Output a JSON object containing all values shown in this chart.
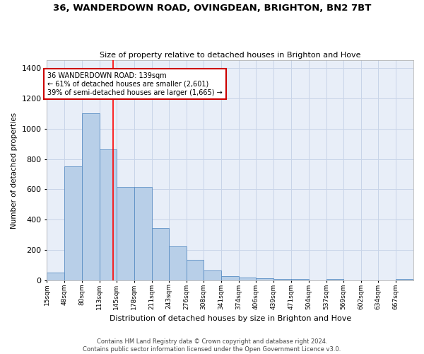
{
  "title": "36, WANDERDOWN ROAD, OVINGDEAN, BRIGHTON, BN2 7BT",
  "subtitle": "Size of property relative to detached houses in Brighton and Hove",
  "xlabel": "Distribution of detached houses by size in Brighton and Hove",
  "ylabel": "Number of detached properties",
  "footer1": "Contains HM Land Registry data © Crown copyright and database right 2024.",
  "footer2": "Contains public sector information licensed under the Open Government Licence v3.0.",
  "bar_labels": [
    "15sqm",
    "48sqm",
    "80sqm",
    "113sqm",
    "145sqm",
    "178sqm",
    "211sqm",
    "243sqm",
    "276sqm",
    "308sqm",
    "341sqm",
    "374sqm",
    "406sqm",
    "439sqm",
    "471sqm",
    "504sqm",
    "537sqm",
    "569sqm",
    "602sqm",
    "634sqm",
    "667sqm"
  ],
  "bar_values": [
    50,
    750,
    1100,
    865,
    615,
    615,
    345,
    225,
    135,
    65,
    30,
    20,
    15,
    10,
    10,
    0,
    10,
    0,
    0,
    0,
    10
  ],
  "bar_color": "#b8cfe8",
  "bar_edge_color": "#5b8ec4",
  "annotation_text_line1": "36 WANDERDOWN ROAD: 139sqm",
  "annotation_text_line2": "← 61% of detached houses are smaller (2,601)",
  "annotation_text_line3": "39% of semi-detached houses are larger (1,665) →",
  "annotation_box_color": "#ffffff",
  "annotation_box_edgecolor": "#cc0000",
  "red_line_x": 139,
  "grid_color": "#c8d4e8",
  "bg_color": "#e8eef8",
  "ylim": [
    0,
    1450
  ],
  "bin_edges": [
    15,
    48,
    80,
    113,
    145,
    178,
    211,
    243,
    276,
    308,
    341,
    374,
    406,
    439,
    471,
    504,
    537,
    569,
    602,
    634,
    667,
    700
  ]
}
